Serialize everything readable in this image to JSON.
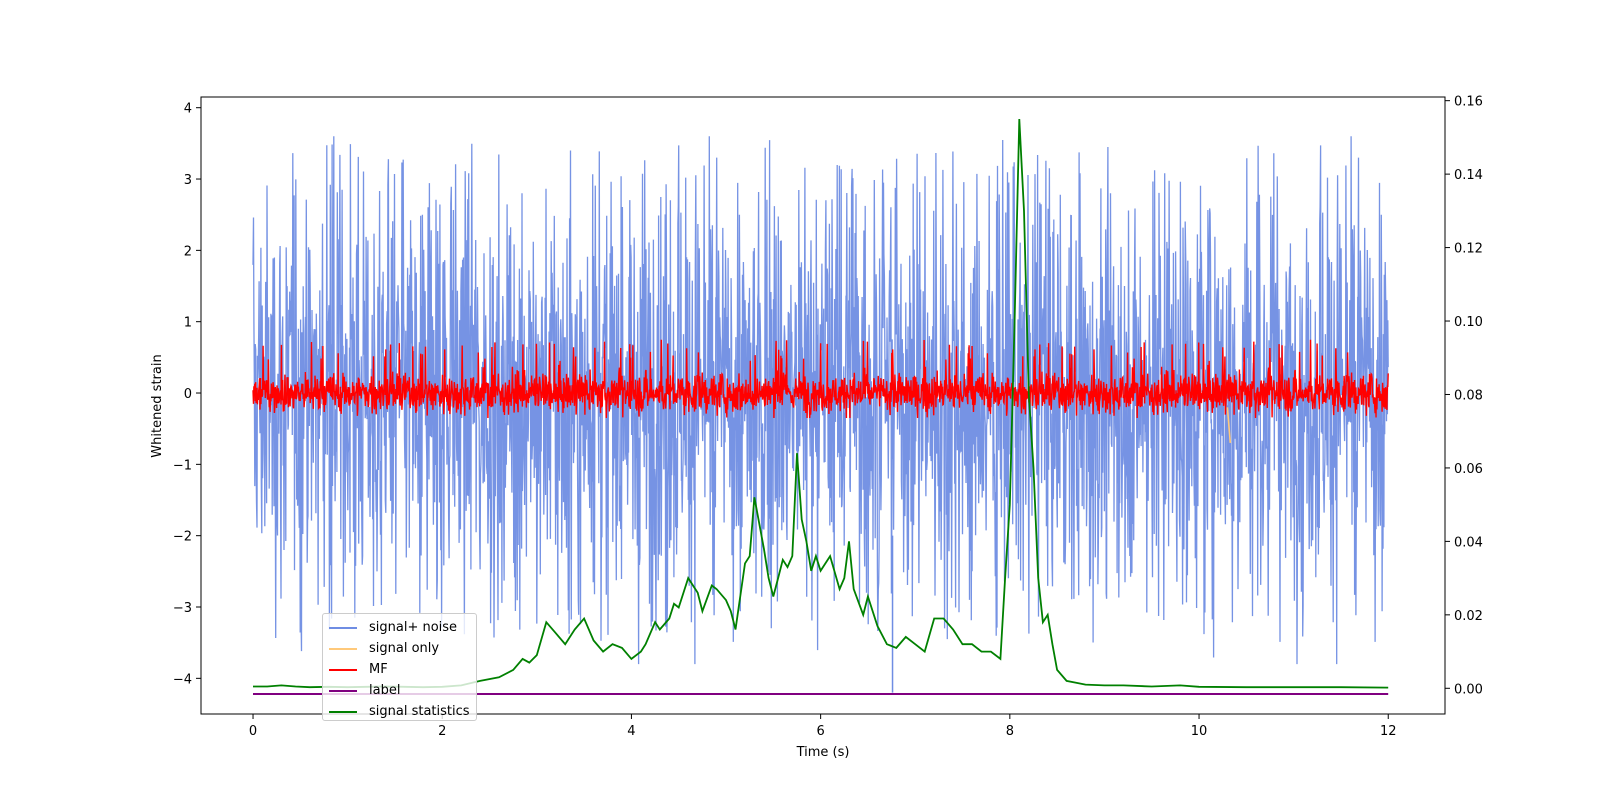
{
  "chart_data": {
    "type": "line",
    "xlabel": "Time (s)",
    "ylabel": "Whitened strain",
    "xlim": [
      -0.55,
      12.6
    ],
    "ylim": [
      -4.5,
      4.15
    ],
    "y2lim": [
      -0.007,
      0.161
    ],
    "xticks": [
      0,
      2,
      4,
      6,
      8,
      10,
      12
    ],
    "yticks": [
      -4,
      -3,
      -2,
      -1,
      0,
      1,
      2,
      3,
      4
    ],
    "y2ticks": [
      0.0,
      0.02,
      0.04,
      0.06,
      0.08,
      0.1,
      0.12,
      0.14,
      0.16
    ],
    "legend_position": "lower-left",
    "colors": {
      "signal_noise": "#6f8de3",
      "signal_only": "#ffa500",
      "mf": "#ff0000",
      "label": "#800080",
      "statistics": "#008000"
    },
    "series": [
      {
        "name": "signal+ noise",
        "axis": "left",
        "description_values": {
          "x_range": [
            0,
            12
          ],
          "amplitude_envelope": [
            -3.8,
            3.6
          ],
          "typical_abs": 1.5
        }
      },
      {
        "name": "signal only",
        "axis": "left",
        "values": [
          {
            "x": 10.3,
            "y": -0.2
          },
          {
            "x": 10.33,
            "y": -0.7
          }
        ]
      },
      {
        "name": "MF",
        "axis": "left",
        "description_values": {
          "x_range": [
            0,
            12
          ],
          "amplitude_envelope": [
            -0.35,
            1.0
          ],
          "typical_abs": 0.3
        }
      },
      {
        "name": "label",
        "axis": "left",
        "values": [
          {
            "x": 0,
            "y": -4.22
          },
          {
            "x": 12,
            "y": -4.22
          }
        ]
      },
      {
        "name": "signal statistics",
        "axis": "right",
        "x": [
          0,
          0.15,
          0.3,
          0.45,
          0.6,
          0.8,
          1.0,
          1.2,
          1.4,
          1.6,
          1.8,
          2.0,
          2.2,
          2.4,
          2.6,
          2.75,
          2.85,
          2.92,
          3.0,
          3.1,
          3.2,
          3.3,
          3.4,
          3.5,
          3.6,
          3.7,
          3.8,
          3.9,
          4.0,
          4.1,
          4.15,
          4.25,
          4.3,
          4.4,
          4.45,
          4.5,
          4.6,
          4.7,
          4.75,
          4.85,
          4.9,
          5.0,
          5.05,
          5.1,
          5.2,
          5.25,
          5.3,
          5.4,
          5.45,
          5.5,
          5.55,
          5.6,
          5.65,
          5.7,
          5.75,
          5.8,
          5.85,
          5.9,
          5.95,
          6.0,
          6.1,
          6.2,
          6.25,
          6.3,
          6.35,
          6.45,
          6.5,
          6.6,
          6.7,
          6.8,
          6.9,
          7.0,
          7.1,
          7.2,
          7.3,
          7.4,
          7.5,
          7.6,
          7.7,
          7.8,
          7.9,
          7.95,
          8.0,
          8.05,
          8.1,
          8.15,
          8.2,
          8.25,
          8.3,
          8.35,
          8.4,
          8.45,
          8.5,
          8.6,
          8.7,
          8.8,
          9.0,
          9.2,
          9.5,
          9.8,
          10.0,
          10.5,
          11.0,
          11.5,
          12.0
        ],
        "y": [
          0.0005,
          0.0005,
          0.0008,
          0.0005,
          0.0003,
          0.0004,
          0.0003,
          0.0004,
          0.0005,
          0.0004,
          0.0003,
          0.0004,
          0.0008,
          0.002,
          0.003,
          0.005,
          0.008,
          0.007,
          0.009,
          0.018,
          0.015,
          0.012,
          0.016,
          0.019,
          0.013,
          0.01,
          0.012,
          0.011,
          0.008,
          0.01,
          0.012,
          0.018,
          0.016,
          0.019,
          0.023,
          0.022,
          0.03,
          0.026,
          0.021,
          0.028,
          0.027,
          0.024,
          0.021,
          0.016,
          0.034,
          0.036,
          0.052,
          0.038,
          0.03,
          0.025,
          0.03,
          0.035,
          0.033,
          0.036,
          0.064,
          0.046,
          0.04,
          0.032,
          0.036,
          0.032,
          0.036,
          0.027,
          0.03,
          0.04,
          0.027,
          0.02,
          0.025,
          0.017,
          0.012,
          0.011,
          0.014,
          0.012,
          0.01,
          0.019,
          0.019,
          0.016,
          0.012,
          0.012,
          0.01,
          0.01,
          0.008,
          0.03,
          0.05,
          0.1,
          0.155,
          0.13,
          0.08,
          0.06,
          0.03,
          0.018,
          0.02,
          0.012,
          0.005,
          0.002,
          0.0015,
          0.001,
          0.0008,
          0.0008,
          0.0005,
          0.0008,
          0.0004,
          0.0003,
          0.0003,
          0.0003,
          0.0002
        ]
      }
    ]
  }
}
